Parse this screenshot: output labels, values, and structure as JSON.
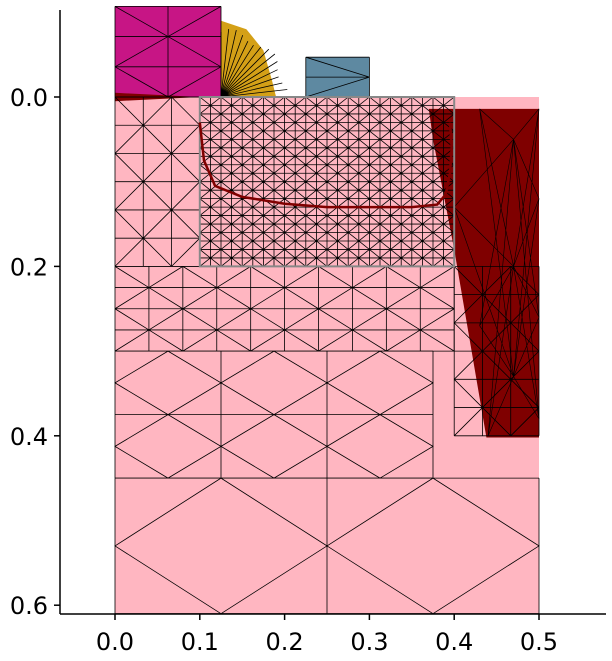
{
  "chart_data": {
    "type": "mesh-plot",
    "title": "",
    "xlabel": "",
    "ylabel": "",
    "x_ticks": [
      {
        "value": 0.0,
        "label": "0.0"
      },
      {
        "value": 0.1,
        "label": "0.1"
      },
      {
        "value": 0.2,
        "label": "0.2"
      },
      {
        "value": 0.3,
        "label": "0.3"
      },
      {
        "value": 0.4,
        "label": "0.4"
      },
      {
        "value": 0.5,
        "label": "0.5"
      }
    ],
    "y_ticks": [
      {
        "value": 0.0,
        "label": "0.0"
      },
      {
        "value": 0.2,
        "label": "0.2"
      },
      {
        "value": 0.4,
        "label": "0.4"
      },
      {
        "value": 0.6,
        "label": "0.6"
      }
    ],
    "xlim": [
      -0.065,
      0.58
    ],
    "ylim_inverted": [
      -0.1,
      0.61
    ],
    "y_axis_direction": "down",
    "grid": false,
    "regions": [
      {
        "color": "#FFB6C1",
        "polygon": [
          [
            0.0,
            0.0
          ],
          [
            0.5,
            0.0
          ],
          [
            0.5,
            0.61
          ],
          [
            0.0,
            0.61
          ]
        ]
      },
      {
        "color": "#C71585",
        "polygon": [
          [
            0.0,
            -0.107
          ],
          [
            0.125,
            -0.107
          ],
          [
            0.125,
            0.0
          ],
          [
            0.0,
            0.0
          ]
        ]
      },
      {
        "color": "#D4A017",
        "polygon": [
          [
            0.125,
            -0.09
          ],
          [
            0.155,
            -0.08
          ],
          [
            0.175,
            -0.055
          ],
          [
            0.185,
            -0.02
          ],
          [
            0.19,
            0.0
          ],
          [
            0.125,
            0.0
          ]
        ]
      },
      {
        "color": "#5E89A1",
        "polygon": [
          [
            0.225,
            -0.047
          ],
          [
            0.3,
            -0.047
          ],
          [
            0.3,
            0.0
          ],
          [
            0.225,
            0.0
          ]
        ]
      },
      {
        "color": "#7F0000",
        "polygon": [
          [
            0.37,
            0.014
          ],
          [
            0.5,
            0.014
          ],
          [
            0.5,
            0.402
          ],
          [
            0.438,
            0.402
          ],
          [
            0.4,
            0.18
          ],
          [
            0.375,
            0.05
          ]
        ]
      },
      {
        "color": "#7F0000",
        "polygon": [
          [
            0.0,
            -0.005
          ],
          [
            0.1,
            0.0
          ],
          [
            0.0,
            0.005
          ]
        ]
      }
    ],
    "inner_box": {
      "color": "#888888",
      "polygon": [
        [
          0.1,
          0.0
        ],
        [
          0.4,
          0.0
        ],
        [
          0.4,
          0.2
        ],
        [
          0.1,
          0.2
        ]
      ]
    },
    "curve": {
      "color": "#800000",
      "points": [
        [
          0.1,
          0.03
        ],
        [
          0.105,
          0.075
        ],
        [
          0.118,
          0.105
        ],
        [
          0.15,
          0.118
        ],
        [
          0.2,
          0.126
        ],
        [
          0.25,
          0.13
        ],
        [
          0.3,
          0.13
        ],
        [
          0.35,
          0.13
        ],
        [
          0.38,
          0.127
        ],
        [
          0.39,
          0.115
        ],
        [
          0.395,
          0.09
        ],
        [
          0.397,
          0.06
        ],
        [
          0.395,
          0.03
        ]
      ]
    },
    "mesh_color": "#000000"
  }
}
